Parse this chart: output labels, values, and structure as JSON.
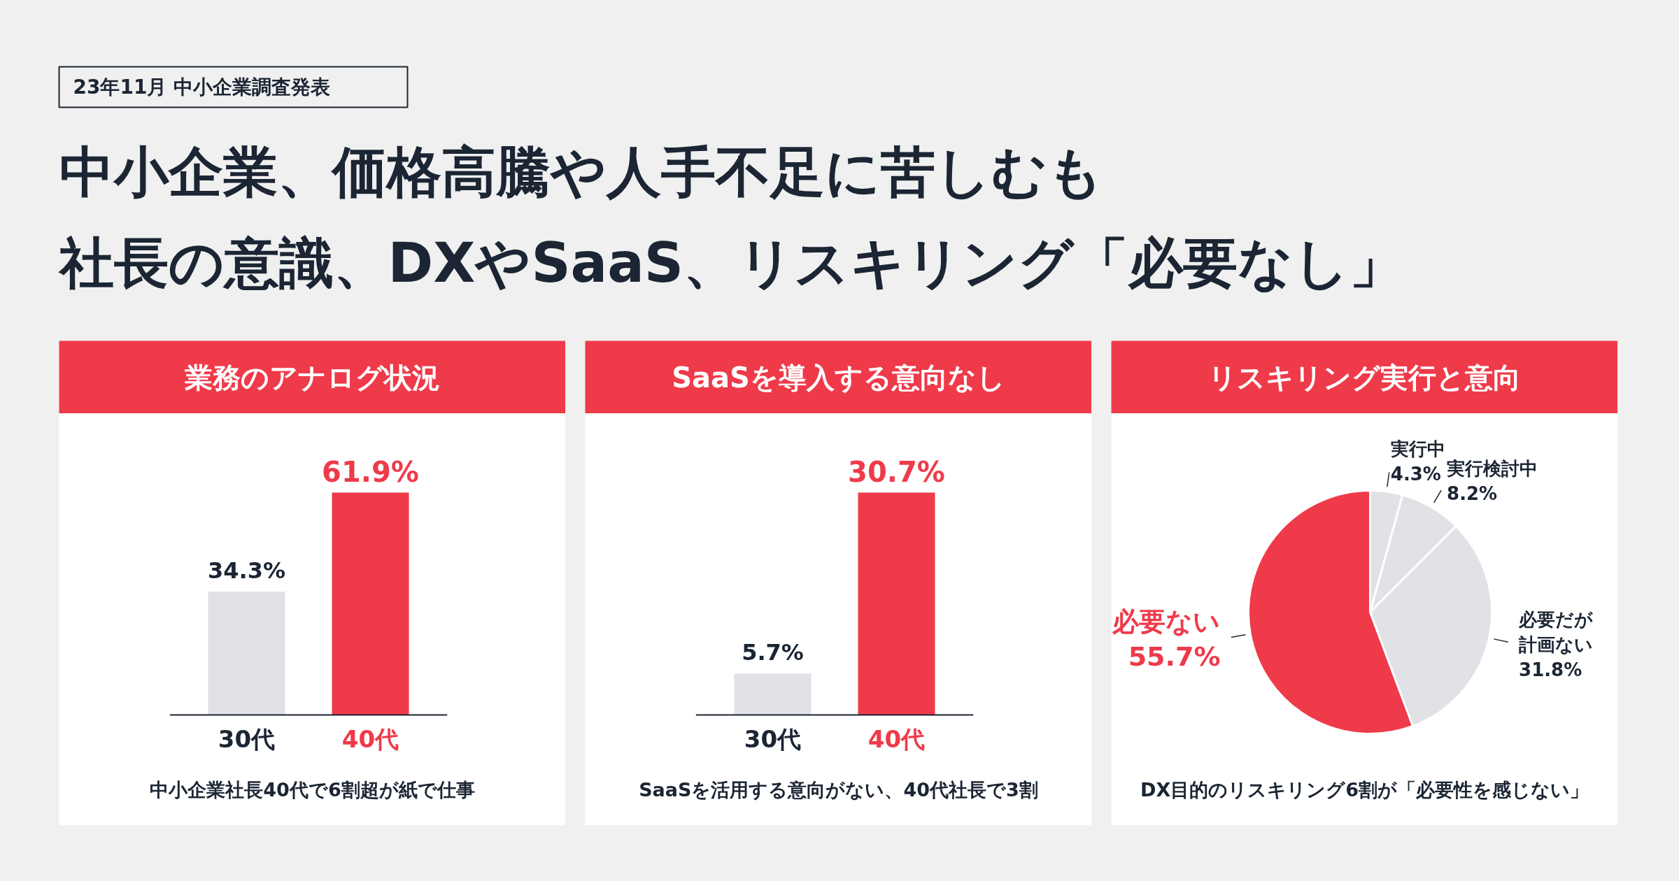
{
  "chart_data": [
    {
      "type": "other",
      "title": "中小企業、価格高騰や人手不足に苦しむも",
      "subtitle": "社長の意識、DXやSaaS、リスキリング「必要なし」",
      "annotations": [
        "23年11月 中小企業調査発表"
      ]
    },
    {
      "type": "bar",
      "title": "業務のアナログ状況",
      "categories": [
        "30代",
        "40代"
      ],
      "colors": [
        "#e1e2e6",
        "#ef3a4a"
      ],
      "values": [
        34.3,
        61.9
      ],
      "value_labels": [
        "34.3%",
        "61.9%"
      ],
      "annotations": [
        "中小企業社長40代で6割超が紙で仕事"
      ]
    },
    {
      "type": "bar",
      "title": "SaaSを導入する意向なし",
      "categories": [
        "30代",
        "40代"
      ],
      "colors": [
        "#e1e2e6",
        "#ef3a4a"
      ],
      "values": [
        5.7,
        30.7
      ],
      "value_labels": [
        "5.7%",
        "30.7%"
      ],
      "annotations": [
        "SaaSを活用する意向がない、40代社長で3割"
      ]
    },
    {
      "type": "pie",
      "title": "リスキリング実行と意向",
      "categories": [
        "実行中",
        "実行検討中",
        "必要だが計画ない",
        "必要ない"
      ],
      "colors": [
        "#e1e2e6",
        "#e1e2e6",
        "#e1e2e6",
        "#ef3a4a"
      ],
      "values": [
        4.3,
        8.2,
        31.8,
        55.7
      ],
      "value_labels": [
        "4.3%",
        "8.2%",
        "31.8%",
        "55.7%"
      ],
      "annotations": [
        "DX目的のリスキリング6割が「必要性を感じない」"
      ]
    }
  ]
}
